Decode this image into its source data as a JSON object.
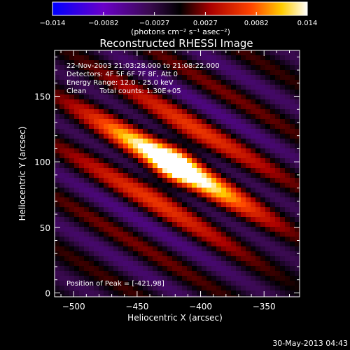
{
  "chart_data": {
    "type": "heatmap",
    "title": "Reconstructed RHESSI Image",
    "xlabel": "Heliocentric X (arcsec)",
    "ylabel": "Heliocentric Y (arcsec)",
    "xlim": [
      -515,
      -322
    ],
    "ylim": [
      -3,
      185
    ],
    "xticks": [
      -500,
      -450,
      -400,
      -350
    ],
    "yticks": [
      0,
      50,
      100,
      150
    ],
    "colorbar": {
      "range": [
        -0.014,
        0.014
      ],
      "ticks": [
        "-0.014",
        "-0.0082",
        "-0.0027",
        "0.0027",
        "0.0082",
        "0.014"
      ],
      "label": "(photons cm⁻² s⁻¹ asec⁻²)",
      "colors": [
        "#0000ff",
        "#6a00c8",
        "#3a0a50",
        "#000000",
        "#aa0000",
        "#ff4400",
        "#ffcc00",
        "#ffffff"
      ]
    },
    "annotations": [
      "22-Nov-2003 21:03:28.000 to 21:08:22.000",
      "Detectors: 4F 5F 6F 7F 8F, Att 0",
      "Energy Range: 12.0 - 25.0 keV",
      "Clean      Total counts: 1.30E+05"
    ],
    "peak_label": "Position of Peak = [-421,98]",
    "peak": {
      "x": -421,
      "y": 98
    },
    "timestamp": "30-May-2013 04:43"
  }
}
